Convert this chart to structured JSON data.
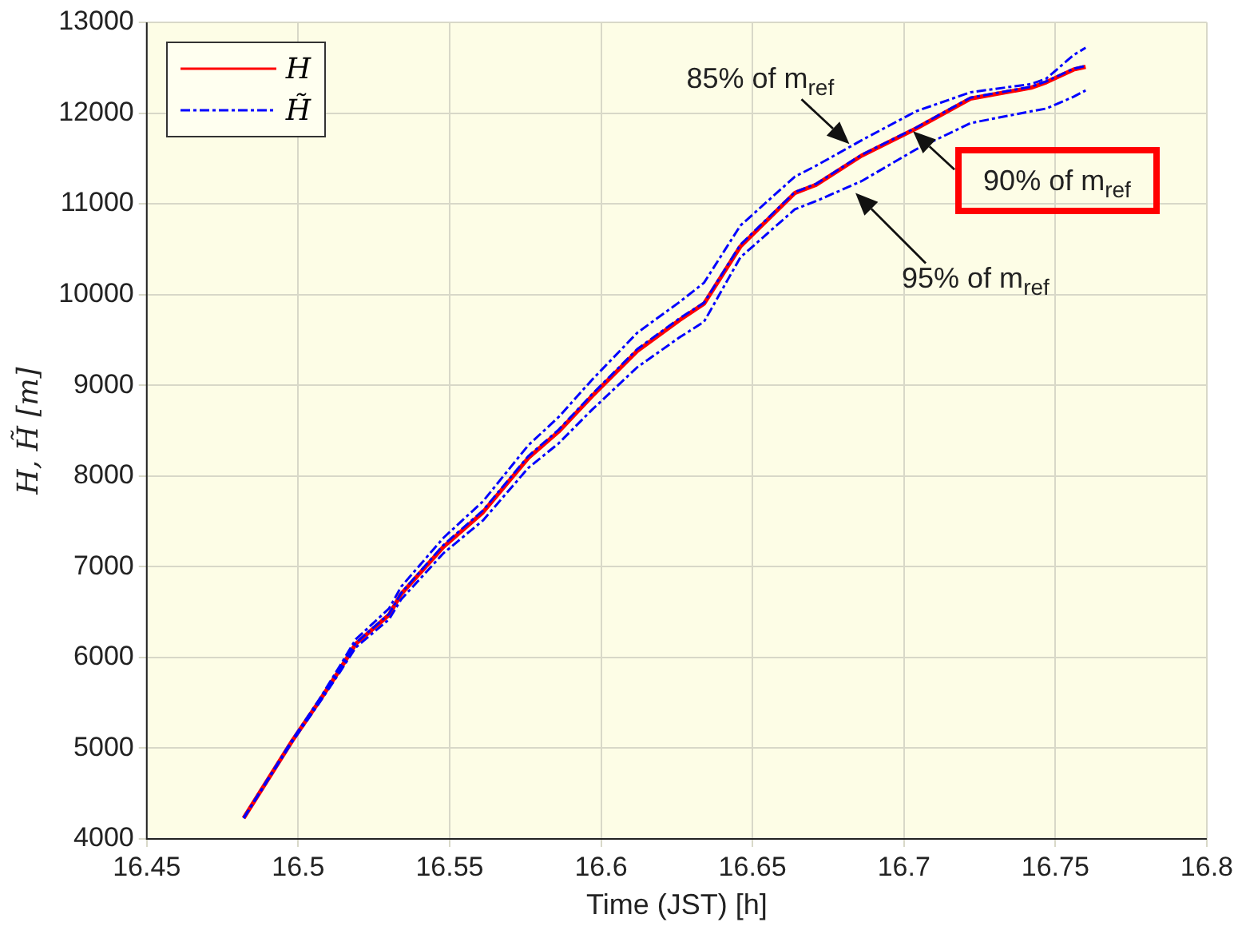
{
  "chart_data": {
    "type": "line",
    "xlabel": "Time (JST) [h]",
    "ylabel": "H, H̃ [m]",
    "x": [
      16.482,
      16.498,
      16.507,
      16.514,
      16.519,
      16.53,
      16.534,
      16.548,
      16.561,
      16.576,
      16.586,
      16.597,
      16.612,
      16.626,
      16.634,
      16.646,
      16.664,
      16.671,
      16.686,
      16.704,
      16.722,
      16.742,
      16.747,
      16.756,
      16.76
    ],
    "series": [
      {
        "name": "H",
        "color": "#ff0000",
        "line_style": "solid",
        "values": [
          4230,
          5080,
          5520,
          5880,
          6150,
          6470,
          6700,
          7220,
          7600,
          8200,
          8490,
          8880,
          9380,
          9720,
          9900,
          10530,
          11120,
          11210,
          11530,
          11830,
          12160,
          12280,
          12340,
          12480,
          12510
        ]
      },
      {
        "name": "H̃",
        "color": "#0000ff",
        "line_style": "dashed",
        "values": [
          4230,
          5080,
          5520,
          5890,
          6160,
          6480,
          6710,
          7240,
          7620,
          8220,
          8510,
          8900,
          9400,
          9740,
          9910,
          10550,
          11130,
          11220,
          11540,
          11840,
          12170,
          12290,
          12350,
          12490,
          12520
        ]
      },
      {
        "color": "#0000ff",
        "line_style": "dashed",
        "values": [
          4230,
          5090,
          5540,
          5920,
          6200,
          6540,
          6780,
          7320,
          7720,
          8340,
          8650,
          9060,
          9580,
          9920,
          10130,
          10760,
          11300,
          11420,
          11700,
          12020,
          12230,
          12320,
          12380,
          12640,
          12720
        ]
      },
      {
        "color": "#0000ff",
        "line_style": "dashed",
        "values": [
          4230,
          5070,
          5500,
          5850,
          6110,
          6420,
          6640,
          7150,
          7510,
          8090,
          8360,
          8730,
          9200,
          9530,
          9700,
          10410,
          10940,
          11030,
          11250,
          11600,
          11890,
          12020,
          12050,
          12180,
          12250
        ]
      }
    ],
    "xlim": [
      16.45,
      16.8
    ],
    "xticks": [
      16.45,
      16.5,
      16.55,
      16.6,
      16.65,
      16.7,
      16.75,
      16.8
    ],
    "ylim": [
      4000,
      13000
    ],
    "yticks": [
      4000,
      5000,
      6000,
      7000,
      8000,
      9000,
      10000,
      11000,
      12000,
      13000
    ],
    "grid": true,
    "legend": "top left",
    "marker": "none",
    "annotations": [
      {
        "text": "85% of m$_{ref}$",
        "x": 16.682,
        "y": 11660
      },
      {
        "text": "90% of m$_{ref}$",
        "x": 16.703,
        "y": 11800
      },
      {
        "text": "95% of m$_{ref}$",
        "x": 16.684,
        "y": 11120
      }
    ]
  }
}
